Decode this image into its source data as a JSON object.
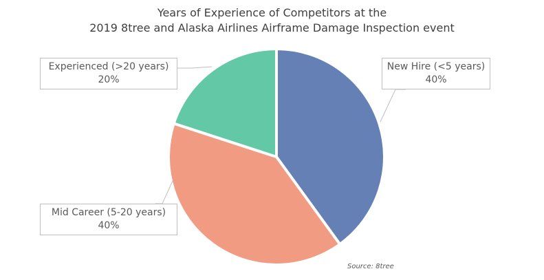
{
  "chart_data": {
    "type": "pie",
    "title": "Years of Experience of Competitors at the",
    "subtitle": "2019 8tree and Alaska Airlines Airframe Damage Inspection event",
    "slices": [
      {
        "label": "New Hire (<5 years)",
        "value": 40,
        "value_label": "40%",
        "color": "#6580b5"
      },
      {
        "label": "Mid Career (5-20 years)",
        "value": 40,
        "value_label": "40%",
        "color": "#f19b83"
      },
      {
        "label": "Experienced (>20 years)",
        "value": 20,
        "value_label": "20%",
        "color": "#62c8a6"
      }
    ],
    "source": "Source: 8tree"
  }
}
